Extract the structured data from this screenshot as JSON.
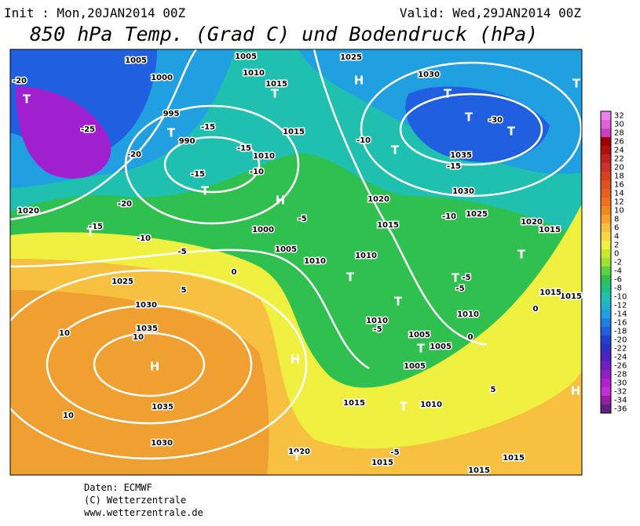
{
  "header": {
    "init": "Init : Mon,20JAN2014 00Z",
    "valid": "Valid: Wed,29JAN2014 00Z",
    "title": "850 hPa Temp. (Grad C) und Bodendruck (hPa)"
  },
  "map_labels": [
    "1005",
    "1000",
    "995",
    "990",
    "1005",
    "1010",
    "1015",
    "1015",
    "1010",
    "1025",
    "1030",
    "1035",
    "1030",
    "1025",
    "1020",
    "1015",
    "1020",
    "1015",
    "1010",
    "1005",
    "1000",
    "1010",
    "1020",
    "1025",
    "1030",
    "1035",
    "1035",
    "1030",
    "1010",
    "1005",
    "1005",
    "1005",
    "1015",
    "1010",
    "1020",
    "1015",
    "1015",
    "1015",
    "1015",
    "1015",
    "1010",
    "-20",
    "-25",
    "-20",
    "-20",
    "-15",
    "-10",
    "-5",
    "0",
    "5",
    "10",
    "10",
    "10",
    "-15",
    "-15",
    "-10",
    "-15",
    "-15",
    "-30",
    "-10",
    "-10",
    "-5",
    "-5",
    "-5",
    "-5",
    "0",
    "0",
    "5",
    "-5",
    "H",
    "H",
    "H",
    "H",
    "H",
    "T",
    "T",
    "T",
    "T",
    "T",
    "T",
    "T",
    "T",
    "T",
    "T",
    "T",
    "T",
    "T",
    "T",
    "T",
    "T",
    "T",
    "T"
  ],
  "colorbar": {
    "labels": [
      32,
      30,
      28,
      26,
      24,
      22,
      20,
      18,
      16,
      14,
      12,
      10,
      8,
      6,
      4,
      2,
      0,
      -2,
      -4,
      -6,
      -8,
      -10,
      -12,
      -14,
      -16,
      -18,
      -20,
      -22,
      -24,
      -26,
      -28,
      -30,
      -32,
      -34,
      -36
    ],
    "colors": [
      "#f080f0",
      "#e060d8",
      "#c840c0",
      "#a00000",
      "#b01010",
      "#c02020",
      "#d03030",
      "#d84020",
      "#e05020",
      "#e86020",
      "#f07020",
      "#f08820",
      "#f8a030",
      "#f8c040",
      "#f8d840",
      "#f0f040",
      "#c8e830",
      "#a0e030",
      "#60d040",
      "#30c050",
      "#20c080",
      "#20c0b0",
      "#20b0d0",
      "#20a0e0",
      "#2080e0",
      "#2060e0",
      "#2040d0",
      "#3030c0",
      "#5020c0",
      "#7020c0",
      "#9020c0",
      "#b020d0",
      "#c030d0",
      "#9020a0",
      "#602080"
    ]
  },
  "footer": {
    "source": "Daten: ECMWF",
    "copyright": "(C) Wetterzentrale",
    "url": "www.wetterzentrale.de"
  }
}
